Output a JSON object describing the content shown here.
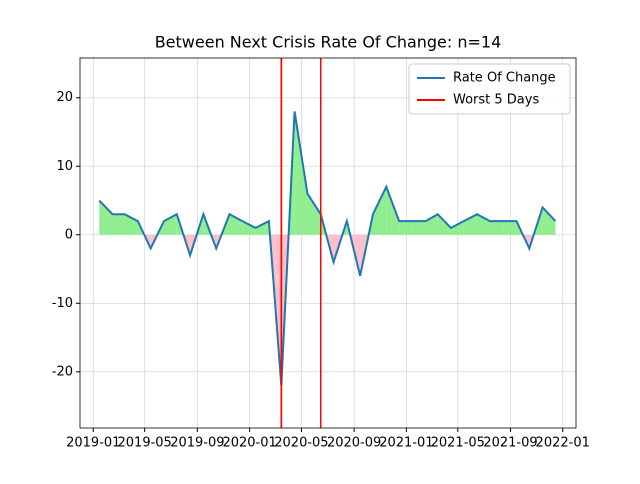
{
  "chart_data": {
    "type": "line",
    "title": "Between Next Crisis Rate Of Change: n=14",
    "x": [
      "2019-01",
      "2019-02",
      "2019-03",
      "2019-04",
      "2019-05",
      "2019-06",
      "2019-07",
      "2019-08",
      "2019-09",
      "2019-10",
      "2019-11",
      "2019-12",
      "2020-01",
      "2020-02",
      "2020-03",
      "2020-04",
      "2020-05",
      "2020-06",
      "2020-07",
      "2020-08",
      "2020-09",
      "2020-10",
      "2020-11",
      "2020-12",
      "2021-01",
      "2021-02",
      "2021-03",
      "2021-04",
      "2021-05",
      "2021-06",
      "2021-07",
      "2021-08",
      "2021-09",
      "2021-10",
      "2021-11",
      "2021-12"
    ],
    "series": [
      {
        "name": "Rate Of Change",
        "color": "#1f77b4",
        "values": [
          5,
          3,
          3,
          2,
          -2,
          2,
          3,
          -3,
          3,
          -2,
          3,
          2,
          1,
          2,
          -22,
          18,
          6,
          3,
          -4,
          2,
          -6,
          3,
          7,
          2,
          2,
          2,
          3,
          1,
          2,
          3,
          2,
          2,
          2,
          -2,
          4,
          2
        ]
      },
      {
        "name": "Worst 5 Days",
        "color": "#ff0000",
        "kind": "vline",
        "x": [
          "2020-03",
          "2020-03",
          "2020-03",
          "2020-03",
          "2020-06"
        ]
      }
    ],
    "fill_positive": "#90ee90",
    "fill_negative": "#ffc0cb",
    "xlim": [
      "2018-12",
      "2022-02"
    ],
    "xticks": [
      "2019-01",
      "2019-05",
      "2019-09",
      "2020-01",
      "2020-05",
      "2020-09",
      "2021-01",
      "2021-05",
      "2021-09",
      "2022-01"
    ],
    "ylim": [
      -28.2,
      25.8
    ],
    "yticks": [
      -20,
      -10,
      0,
      10,
      20
    ],
    "grid": true,
    "legend": "upper right"
  }
}
